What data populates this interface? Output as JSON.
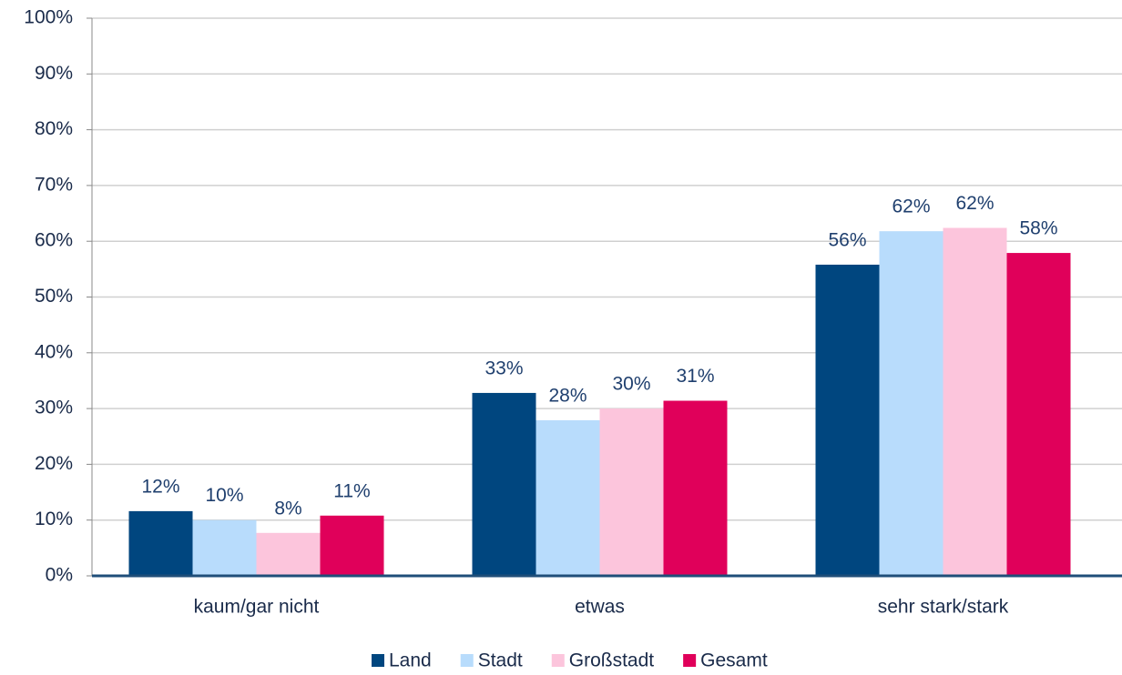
{
  "chart_data": {
    "type": "bar",
    "categories": [
      "kaum/gar nicht",
      "etwas",
      "sehr stark/stark"
    ],
    "series": [
      {
        "name": "Land",
        "color": "#00467f",
        "values": [
          11.6,
          32.8,
          55.8
        ],
        "value_labels": [
          "12%",
          "33%",
          "56%"
        ]
      },
      {
        "name": "Stadt",
        "color": "#b8dcfc",
        "values": [
          10.0,
          27.9,
          61.8
        ],
        "value_labels": [
          "10%",
          "28%",
          "62%"
        ]
      },
      {
        "name": "Großstadt",
        "color": "#fcc5dc",
        "values": [
          7.7,
          30.0,
          62.4
        ],
        "value_labels": [
          "8%",
          "30%",
          "62%"
        ]
      },
      {
        "name": "Gesamt",
        "color": "#e0005a",
        "values": [
          10.8,
          31.4,
          57.9
        ],
        "value_labels": [
          "11%",
          "31%",
          "58%"
        ]
      }
    ],
    "ylim": [
      0,
      100
    ],
    "yticks": [
      {
        "value": 0,
        "label": "0%"
      },
      {
        "value": 10,
        "label": "10%"
      },
      {
        "value": 20,
        "label": "20%"
      },
      {
        "value": 30,
        "label": "30%"
      },
      {
        "value": 40,
        "label": "40%"
      },
      {
        "value": 50,
        "label": "50%"
      },
      {
        "value": 60,
        "label": "60%"
      },
      {
        "value": 70,
        "label": "70%"
      },
      {
        "value": 80,
        "label": "80%"
      },
      {
        "value": 90,
        "label": "90%"
      },
      {
        "value": 100,
        "label": "100%"
      }
    ],
    "grid": true,
    "legend": "bottom"
  }
}
